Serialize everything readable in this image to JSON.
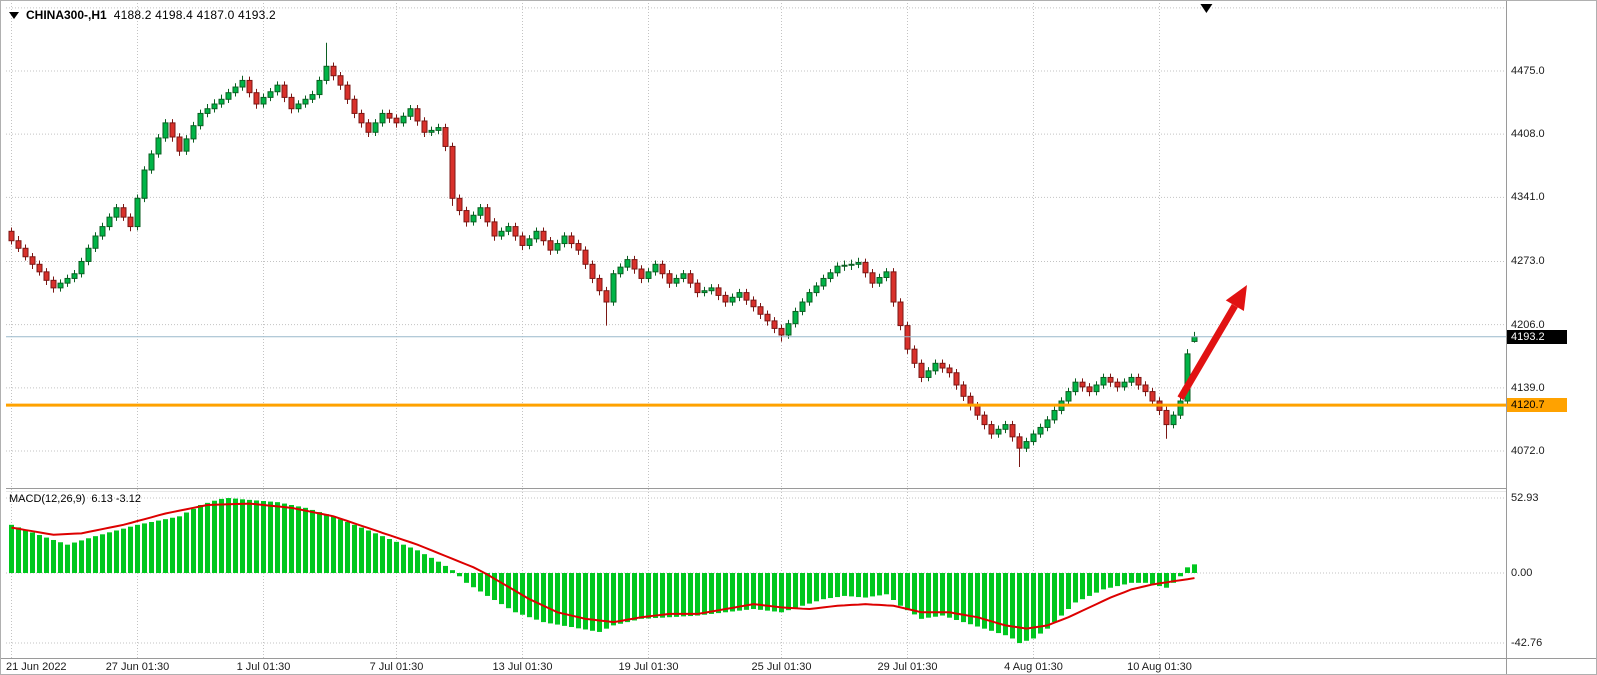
{
  "header": {
    "symbol_period": "CHINA300-,H1",
    "ohlc_values": "4188.2 4198.4 4187.0 4193.2"
  },
  "macd_header": {
    "label": "MACD(12,26,9)",
    "values": "6.13 -3.12"
  },
  "colors": {
    "up_fill": "#00b447",
    "up_stroke": "#0b5f22",
    "down_fill": "#d9312b",
    "down_stroke": "#7a1714",
    "hist": "#00c71f",
    "signal": "#dd0000",
    "arrow": "#e11212",
    "bid_line": "#9ab9cc",
    "level_line": "#ffa200",
    "grid": "#c3c3c3",
    "border": "#9a9a9a",
    "bid_box_bg": "#000000",
    "bid_box_text": "#ffffff",
    "level_box_bg": "#ffa200",
    "level_box_text": "#000000",
    "text": "#000000"
  },
  "chart_data": {
    "type": "candlestick",
    "symbol": "CHINA300-",
    "timeframe": "H1",
    "ylim_main": [
      4033,
      4540
    ],
    "ohlc": [
      [
        4305,
        4309,
        4291,
        4295
      ],
      [
        4295,
        4300,
        4283,
        4287
      ],
      [
        4287,
        4291,
        4274,
        4278
      ],
      [
        4278,
        4282,
        4265,
        4270
      ],
      [
        4270,
        4274,
        4258,
        4262
      ],
      [
        4262,
        4266,
        4248,
        4253
      ],
      [
        4253,
        4257,
        4240,
        4245
      ],
      [
        4245,
        4254,
        4241,
        4250
      ],
      [
        4250,
        4259,
        4246,
        4255
      ],
      [
        4255,
        4264,
        4251,
        4260
      ],
      [
        4260,
        4277,
        4256,
        4273
      ],
      [
        4273,
        4291,
        4269,
        4287
      ],
      [
        4287,
        4304,
        4283,
        4300
      ],
      [
        4300,
        4314,
        4296,
        4310
      ],
      [
        4310,
        4324,
        4306,
        4320
      ],
      [
        4320,
        4334,
        4316,
        4330
      ],
      [
        4330,
        4334,
        4316,
        4320
      ],
      [
        4320,
        4324,
        4305,
        4310
      ],
      [
        4310,
        4344,
        4306,
        4340
      ],
      [
        4340,
        4374,
        4336,
        4370
      ],
      [
        4370,
        4391,
        4366,
        4387
      ],
      [
        4387,
        4408,
        4383,
        4404
      ],
      [
        4404,
        4424,
        4400,
        4420
      ],
      [
        4420,
        4424,
        4400,
        4405
      ],
      [
        4405,
        4409,
        4385,
        4390
      ],
      [
        4390,
        4407,
        4386,
        4403
      ],
      [
        4403,
        4421,
        4399,
        4417
      ],
      [
        4417,
        4434,
        4413,
        4430
      ],
      [
        4430,
        4440,
        4426,
        4435
      ],
      [
        4435,
        4445,
        4431,
        4440
      ],
      [
        4440,
        4450,
        4436,
        4445
      ],
      [
        4445,
        4456,
        4441,
        4452
      ],
      [
        4452,
        4462,
        4448,
        4458
      ],
      [
        4458,
        4470,
        4454,
        4465
      ],
      [
        4465,
        4469,
        4447,
        4452
      ],
      [
        4452,
        4456,
        4435,
        4440
      ],
      [
        4440,
        4451,
        4436,
        4447
      ],
      [
        4447,
        4457,
        4443,
        4453
      ],
      [
        4453,
        4464,
        4449,
        4460
      ],
      [
        4460,
        4464,
        4442,
        4447
      ],
      [
        4447,
        4451,
        4430,
        4435
      ],
      [
        4435,
        4444,
        4431,
        4440
      ],
      [
        4440,
        4449,
        4436,
        4445
      ],
      [
        4445,
        4454,
        4441,
        4450
      ],
      [
        4450,
        4469,
        4446,
        4465
      ],
      [
        4465,
        4505,
        4461,
        4480
      ],
      [
        4480,
        4484,
        4465,
        4470
      ],
      [
        4470,
        4474,
        4455,
        4460
      ],
      [
        4460,
        4464,
        4440,
        4445
      ],
      [
        4445,
        4449,
        4425,
        4430
      ],
      [
        4430,
        4434,
        4415,
        4420
      ],
      [
        4420,
        4424,
        4405,
        4410
      ],
      [
        4410,
        4424,
        4406,
        4420
      ],
      [
        4420,
        4434,
        4416,
        4430
      ],
      [
        4430,
        4434,
        4420,
        4425
      ],
      [
        4425,
        4429,
        4415,
        4420
      ],
      [
        4420,
        4431,
        4416,
        4427
      ],
      [
        4427,
        4439,
        4423,
        4435
      ],
      [
        4435,
        4439,
        4417,
        4422
      ],
      [
        4422,
        4426,
        4405,
        4410
      ],
      [
        4410,
        4416,
        4406,
        4412
      ],
      [
        4412,
        4419,
        4408,
        4415
      ],
      [
        4415,
        4419,
        4390,
        4395
      ],
      [
        4395,
        4399,
        4332,
        4340
      ],
      [
        4340,
        4344,
        4322,
        4327
      ],
      [
        4327,
        4331,
        4310,
        4315
      ],
      [
        4315,
        4326,
        4311,
        4322
      ],
      [
        4322,
        4334,
        4318,
        4330
      ],
      [
        4330,
        4334,
        4310,
        4315
      ],
      [
        4315,
        4319,
        4295,
        4300
      ],
      [
        4300,
        4309,
        4296,
        4305
      ],
      [
        4305,
        4314,
        4301,
        4310
      ],
      [
        4310,
        4314,
        4295,
        4300
      ],
      [
        4300,
        4304,
        4285,
        4290
      ],
      [
        4290,
        4301,
        4286,
        4297
      ],
      [
        4297,
        4309,
        4293,
        4305
      ],
      [
        4305,
        4309,
        4290,
        4295
      ],
      [
        4295,
        4299,
        4280,
        4285
      ],
      [
        4285,
        4296,
        4281,
        4292
      ],
      [
        4292,
        4304,
        4288,
        4300
      ],
      [
        4300,
        4304,
        4287,
        4292
      ],
      [
        4292,
        4296,
        4280,
        4285
      ],
      [
        4285,
        4289,
        4265,
        4270
      ],
      [
        4270,
        4274,
        4250,
        4255
      ],
      [
        4255,
        4259,
        4237,
        4242
      ],
      [
        4242,
        4246,
        4205,
        4230
      ],
      [
        4230,
        4264,
        4226,
        4260
      ],
      [
        4260,
        4271,
        4256,
        4267
      ],
      [
        4267,
        4279,
        4263,
        4275
      ],
      [
        4275,
        4279,
        4260,
        4265
      ],
      [
        4265,
        4269,
        4250,
        4255
      ],
      [
        4255,
        4266,
        4251,
        4262
      ],
      [
        4262,
        4274,
        4258,
        4270
      ],
      [
        4270,
        4274,
        4255,
        4260
      ],
      [
        4260,
        4264,
        4245,
        4250
      ],
      [
        4250,
        4259,
        4246,
        4255
      ],
      [
        4255,
        4264,
        4251,
        4260
      ],
      [
        4260,
        4264,
        4245,
        4250
      ],
      [
        4250,
        4254,
        4235,
        4240
      ],
      [
        4240,
        4246,
        4236,
        4242
      ],
      [
        4242,
        4249,
        4238,
        4245
      ],
      [
        4245,
        4249,
        4232,
        4237
      ],
      [
        4237,
        4241,
        4225,
        4230
      ],
      [
        4230,
        4239,
        4226,
        4235
      ],
      [
        4235,
        4244,
        4231,
        4240
      ],
      [
        4240,
        4244,
        4227,
        4232
      ],
      [
        4232,
        4236,
        4220,
        4225
      ],
      [
        4225,
        4229,
        4212,
        4217
      ],
      [
        4217,
        4221,
        4205,
        4210
      ],
      [
        4210,
        4214,
        4197,
        4202
      ],
      [
        4202,
        4206,
        4188,
        4195
      ],
      [
        4195,
        4211,
        4191,
        4207
      ],
      [
        4207,
        4224,
        4203,
        4220
      ],
      [
        4220,
        4234,
        4216,
        4230
      ],
      [
        4230,
        4244,
        4226,
        4240
      ],
      [
        4240,
        4251,
        4236,
        4247
      ],
      [
        4247,
        4259,
        4243,
        4255
      ],
      [
        4255,
        4265,
        4251,
        4261
      ],
      [
        4261,
        4272,
        4257,
        4268
      ],
      [
        4268,
        4274,
        4263,
        4269
      ],
      [
        4269,
        4275,
        4264,
        4270
      ],
      [
        4270,
        4277,
        4266,
        4272
      ],
      [
        4272,
        4276,
        4256,
        4261
      ],
      [
        4261,
        4265,
        4245,
        4250
      ],
      [
        4250,
        4260,
        4246,
        4256
      ],
      [
        4256,
        4266,
        4252,
        4262
      ],
      [
        4262,
        4266,
        4225,
        4230
      ],
      [
        4230,
        4234,
        4200,
        4205
      ],
      [
        4205,
        4209,
        4175,
        4180
      ],
      [
        4180,
        4184,
        4160,
        4165
      ],
      [
        4165,
        4169,
        4145,
        4150
      ],
      [
        4150,
        4161,
        4146,
        4157
      ],
      [
        4157,
        4169,
        4153,
        4165
      ],
      [
        4165,
        4169,
        4155,
        4160
      ],
      [
        4160,
        4164,
        4150,
        4155
      ],
      [
        4155,
        4159,
        4137,
        4142
      ],
      [
        4142,
        4146,
        4125,
        4130
      ],
      [
        4130,
        4134,
        4115,
        4120
      ],
      [
        4120,
        4124,
        4105,
        4110
      ],
      [
        4110,
        4114,
        4095,
        4100
      ],
      [
        4100,
        4104,
        4085,
        4090
      ],
      [
        4090,
        4099,
        4086,
        4095
      ],
      [
        4095,
        4104,
        4091,
        4100
      ],
      [
        4100,
        4104,
        4082,
        4087
      ],
      [
        4087,
        4091,
        4055,
        4075
      ],
      [
        4075,
        4086,
        4071,
        4082
      ],
      [
        4082,
        4094,
        4078,
        4090
      ],
      [
        4090,
        4101,
        4086,
        4097
      ],
      [
        4097,
        4109,
        4093,
        4105
      ],
      [
        4105,
        4119,
        4101,
        4115
      ],
      [
        4115,
        4129,
        4111,
        4125
      ],
      [
        4125,
        4139,
        4121,
        4135
      ],
      [
        4135,
        4149,
        4131,
        4145
      ],
      [
        4145,
        4149,
        4135,
        4140
      ],
      [
        4140,
        4144,
        4130,
        4135
      ],
      [
        4135,
        4146,
        4131,
        4142
      ],
      [
        4142,
        4154,
        4138,
        4150
      ],
      [
        4150,
        4154,
        4140,
        4145
      ],
      [
        4145,
        4149,
        4135,
        4140
      ],
      [
        4140,
        4149,
        4136,
        4145
      ],
      [
        4145,
        4154,
        4141,
        4150
      ],
      [
        4150,
        4154,
        4137,
        4142
      ],
      [
        4142,
        4146,
        4130,
        4135
      ],
      [
        4135,
        4139,
        4120,
        4125
      ],
      [
        4125,
        4129,
        4110,
        4115
      ],
      [
        4115,
        4119,
        4085,
        4100
      ],
      [
        4100,
        4114,
        4096,
        4110
      ],
      [
        4110,
        4129,
        4106,
        4125
      ],
      [
        4125,
        4180,
        4121,
        4175
      ],
      [
        4188.2,
        4198.4,
        4187,
        4193.2
      ]
    ],
    "price_axis": {
      "ticks": [
        "4475.0",
        "4408.0",
        "4341.0",
        "4273.0",
        "4206.0",
        "4139.0",
        "4072.0"
      ],
      "grid_extra": [
        4542
      ]
    },
    "time_axis": [
      {
        "bar": 0,
        "label": "21 Jun 2022",
        "align": "left"
      },
      {
        "bar": 18,
        "label": "27 Jun 01:30"
      },
      {
        "bar": 36,
        "label": "1 Jul 01:30"
      },
      {
        "bar": 55,
        "label": "7 Jul 01:30"
      },
      {
        "bar": 73,
        "label": "13 Jul 01:30"
      },
      {
        "bar": 91,
        "label": "19 Jul 01:30"
      },
      {
        "bar": 110,
        "label": "25 Jul 01:30"
      },
      {
        "bar": 128,
        "label": "29 Jul 01:30"
      },
      {
        "bar": 146,
        "label": "4 Aug 01:30"
      },
      {
        "bar": 164,
        "label": "10 Aug 01:30"
      }
    ],
    "bid": {
      "price": 4193.2,
      "label": "4193.2"
    },
    "horizontal_line": {
      "price": 4120.7,
      "label": "4120.7"
    },
    "macd": {
      "params": "12,26,9",
      "current_macd": 6.13,
      "current_signal": -3.12,
      "axis_ticks": [
        "52.93",
        "0.00",
        "-42.76"
      ],
      "ylim": [
        -48,
        56
      ],
      "histogram": [
        34,
        32.2,
        30.4,
        28.6,
        26.8,
        25,
        23.3,
        21.7,
        20,
        21.5,
        23,
        24.5,
        26,
        27.3,
        28.7,
        30,
        31.3,
        32.7,
        34,
        35,
        36,
        37,
        38,
        39,
        40,
        42.7,
        45.3,
        48,
        49.5,
        51,
        52.3,
        52.9,
        52.5,
        52,
        51.6,
        51.2,
        50.8,
        50.4,
        50,
        49,
        48,
        47,
        46,
        44.5,
        43,
        41.5,
        40,
        38,
        36,
        34,
        32,
        30,
        28,
        26,
        24,
        22,
        20,
        18,
        16,
        13.3,
        10.7,
        8,
        5,
        2,
        -2,
        -6,
        -8.7,
        -11.3,
        -14,
        -16.5,
        -19,
        -21.5,
        -24,
        -25.5,
        -27,
        -28.5,
        -30,
        -30.8,
        -31.5,
        -32.3,
        -33,
        -33.8,
        -34.5,
        -35.3,
        -36,
        -34,
        -32,
        -31,
        -30,
        -29,
        -28,
        -27.8,
        -27.5,
        -27.3,
        -27,
        -26.8,
        -26.5,
        -26.3,
        -26,
        -25.5,
        -25,
        -24.5,
        -24,
        -23.5,
        -23,
        -22.5,
        -22,
        -22.5,
        -23,
        -23.5,
        -24,
        -22.7,
        -21.3,
        -20,
        -18.7,
        -17.3,
        -16,
        -15.3,
        -14.7,
        -14,
        -14.3,
        -14.7,
        -15,
        -14.3,
        -13.7,
        -13,
        -16.5,
        -20,
        -22.7,
        -25.3,
        -28,
        -27.3,
        -26.7,
        -26,
        -27.3,
        -28.7,
        -30,
        -31.3,
        -32.7,
        -34,
        -35.3,
        -36.7,
        -38,
        -40,
        -42.8,
        -41.4,
        -40,
        -37,
        -34,
        -30,
        -26,
        -22,
        -18,
        -16,
        -14,
        -12,
        -10,
        -9,
        -8,
        -7,
        -6,
        -6,
        -6,
        -7,
        -8,
        -9,
        -6,
        -2,
        4,
        6.1
      ],
      "signal": [
        32,
        31.2,
        30.3,
        29.5,
        28.7,
        27.8,
        27,
        27.3,
        27.5,
        27.8,
        28,
        29,
        30,
        31,
        32,
        33,
        34,
        35.3,
        36.7,
        38,
        39.3,
        40.7,
        42,
        43,
        44,
        45,
        46,
        47,
        48,
        48.2,
        48.3,
        48.5,
        48.7,
        48.8,
        49,
        48.5,
        48,
        47.5,
        47,
        46.5,
        46,
        45,
        44,
        43,
        42,
        41,
        40,
        38.3,
        36.7,
        35,
        33.3,
        31.7,
        30,
        28.3,
        26.7,
        25,
        23.3,
        21.7,
        20,
        18,
        16,
        14,
        12,
        10,
        8,
        6,
        4,
        1.5,
        -1,
        -3.5,
        -6,
        -8.5,
        -11,
        -13.5,
        -16,
        -18,
        -20,
        -22,
        -24,
        -25,
        -26,
        -27,
        -28,
        -28.5,
        -29,
        -29.5,
        -30,
        -29.3,
        -28.5,
        -27.8,
        -27,
        -26.5,
        -26,
        -25.5,
        -25,
        -25,
        -25,
        -25,
        -25,
        -24.3,
        -23.5,
        -22.8,
        -22,
        -21.3,
        -20.5,
        -19.8,
        -19,
        -19.5,
        -20,
        -20.5,
        -21,
        -21.3,
        -21.5,
        -21.8,
        -22,
        -21.5,
        -21,
        -20.5,
        -20,
        -19.8,
        -19.5,
        -19.3,
        -19,
        -19.3,
        -19.5,
        -19.8,
        -20,
        -21,
        -22,
        -23,
        -24,
        -24,
        -24,
        -24,
        -24,
        -24.8,
        -25.5,
        -26.3,
        -27,
        -28.3,
        -29.5,
        -30.8,
        -32,
        -32.7,
        -33.3,
        -34,
        -33.3,
        -32.7,
        -32,
        -30.3,
        -28.7,
        -27,
        -25,
        -23,
        -21,
        -19,
        -17,
        -15,
        -13.3,
        -11.7,
        -10,
        -9,
        -8,
        -7,
        -6.3,
        -5.7,
        -5,
        -4.4,
        -3.8,
        -3.1
      ]
    },
    "annotation_arrow": {
      "from_bar": 167,
      "from_price": 4128,
      "to_bar": 176.5,
      "to_price": 4248
    },
    "shift_marker_bar": 170.7
  }
}
